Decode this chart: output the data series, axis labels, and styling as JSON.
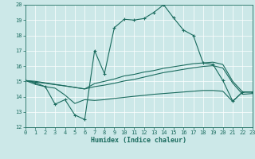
{
  "xlabel": "Humidex (Indice chaleur)",
  "xlim": [
    0,
    23
  ],
  "ylim": [
    12,
    20
  ],
  "xticks": [
    0,
    1,
    2,
    3,
    4,
    5,
    6,
    7,
    8,
    9,
    10,
    11,
    12,
    13,
    14,
    15,
    16,
    17,
    18,
    19,
    20,
    21,
    22,
    23
  ],
  "yticks": [
    12,
    13,
    14,
    15,
    16,
    17,
    18,
    19,
    20
  ],
  "bg_color": "#cce8e8",
  "line_color": "#1a6b5e",
  "line1_x": [
    0,
    1,
    2,
    3,
    4,
    5,
    6,
    7,
    8,
    9,
    10,
    11,
    12,
    13,
    14,
    15,
    16,
    17,
    18,
    19,
    20,
    21,
    22,
    23
  ],
  "line1_y": [
    15.05,
    14.9,
    14.65,
    13.5,
    13.8,
    12.8,
    12.5,
    17.0,
    15.5,
    18.5,
    19.05,
    19.0,
    19.1,
    19.5,
    20.0,
    19.15,
    18.35,
    18.0,
    16.2,
    16.1,
    15.05,
    13.7,
    14.3,
    14.3
  ],
  "line2_x": [
    0,
    1,
    2,
    3,
    4,
    5,
    6,
    7,
    8,
    9,
    10,
    11,
    12,
    13,
    14,
    15,
    16,
    17,
    18,
    19,
    20,
    21,
    22,
    23
  ],
  "line2_y": [
    15.05,
    15.0,
    14.9,
    14.8,
    14.7,
    14.6,
    14.5,
    14.85,
    15.0,
    15.15,
    15.35,
    15.45,
    15.6,
    15.7,
    15.85,
    15.95,
    16.05,
    16.15,
    16.2,
    16.25,
    16.1,
    15.0,
    14.3,
    14.3
  ],
  "line3_x": [
    0,
    1,
    2,
    3,
    4,
    5,
    6,
    7,
    8,
    9,
    10,
    11,
    12,
    13,
    14,
    15,
    16,
    17,
    18,
    19,
    20,
    21,
    22,
    23
  ],
  "line3_y": [
    15.05,
    14.95,
    14.87,
    14.78,
    14.7,
    14.6,
    14.5,
    14.65,
    14.75,
    14.87,
    15.02,
    15.12,
    15.27,
    15.42,
    15.57,
    15.67,
    15.78,
    15.88,
    15.97,
    16.02,
    15.87,
    14.88,
    14.15,
    14.2
  ],
  "line4_x": [
    0,
    1,
    2,
    3,
    4,
    5,
    6,
    7,
    8,
    9,
    10,
    11,
    12,
    13,
    14,
    15,
    16,
    17,
    18,
    19,
    20,
    21,
    22,
    23
  ],
  "line4_y": [
    15.05,
    14.8,
    14.65,
    14.55,
    14.1,
    13.55,
    13.8,
    13.75,
    13.8,
    13.88,
    13.95,
    14.02,
    14.08,
    14.15,
    14.2,
    14.25,
    14.3,
    14.35,
    14.4,
    14.4,
    14.35,
    13.68,
    14.3,
    14.3
  ]
}
